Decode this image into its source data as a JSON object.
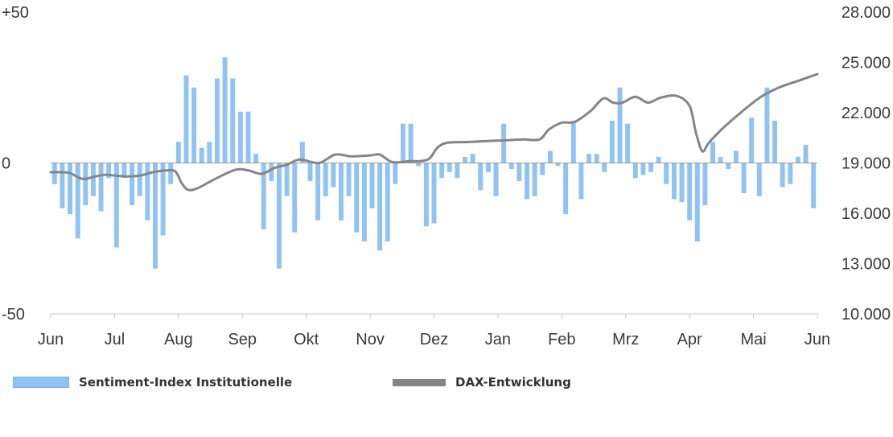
{
  "chart_data": {
    "type": "bar",
    "legend_position": "bottom",
    "grid": false,
    "colors": {
      "bar": "#90c3f4",
      "line": "#858585",
      "axis": "#c8c8c8"
    },
    "x_axis": {
      "ticks": [
        "Jun",
        "Jul",
        "Aug",
        "Sep",
        "Okt",
        "Nov",
        "Dez",
        "Jan",
        "Feb",
        "Mrz",
        "Apr",
        "Mai",
        "Jun"
      ]
    },
    "y_left": {
      "range": [
        -50,
        50
      ],
      "tick_labels": [
        "+50",
        "0",
        "-50"
      ]
    },
    "y_right": {
      "range": [
        10000,
        28000
      ],
      "ticks": [
        10000,
        13000,
        16000,
        19000,
        22000,
        25000,
        28000
      ],
      "tick_labels": [
        "10.000",
        "13.000",
        "16.000",
        "19.000",
        "22.000",
        "25.000",
        "28.000"
      ]
    },
    "series": [
      {
        "name": "Sentiment-Index Institutionelle",
        "type": "bar",
        "axis": "left",
        "values": [
          -7,
          -15,
          -17,
          -25,
          -14,
          -11,
          -16,
          -5,
          -28,
          -5,
          -14,
          -11,
          -19,
          -35,
          -24,
          -7,
          7,
          29,
          25,
          5,
          7,
          28,
          35,
          28,
          17,
          17,
          3,
          -22,
          -6,
          -35,
          -11,
          -23,
          7,
          -6,
          -19,
          -11,
          -8,
          -19,
          -11,
          -23,
          -26,
          -15,
          -29,
          -26,
          -7,
          13,
          13,
          -1,
          -21,
          -20,
          -5,
          -3,
          -5,
          2,
          3,
          -9,
          -3,
          -11,
          13,
          -2,
          -6,
          -12,
          -11,
          -4,
          4,
          -1,
          -17,
          14,
          -12,
          3,
          3,
          -3,
          14,
          25,
          13,
          -5,
          -4,
          -3,
          2,
          -7,
          -12,
          -13,
          -19,
          -26,
          -14,
          7,
          2,
          -2,
          4,
          -10,
          15,
          -11,
          25,
          14,
          -8,
          -7,
          2,
          6,
          -15
        ]
      },
      {
        "name": "DAX-Entwicklung",
        "type": "line",
        "axis": "right",
        "x_unit": "months since Jun",
        "points": [
          [
            0.0,
            18.45
          ],
          [
            0.15,
            18.45
          ],
          [
            0.3,
            18.4
          ],
          [
            0.5,
            18.05
          ],
          [
            0.7,
            18.2
          ],
          [
            0.85,
            18.3
          ],
          [
            1.0,
            18.25
          ],
          [
            1.2,
            18.2
          ],
          [
            1.4,
            18.25
          ],
          [
            1.6,
            18.45
          ],
          [
            1.8,
            18.55
          ],
          [
            1.95,
            18.5
          ],
          [
            2.05,
            17.8
          ],
          [
            2.15,
            17.4
          ],
          [
            2.3,
            17.5
          ],
          [
            2.6,
            18.1
          ],
          [
            2.9,
            18.6
          ],
          [
            3.1,
            18.55
          ],
          [
            3.3,
            18.35
          ],
          [
            3.5,
            18.7
          ],
          [
            3.7,
            18.9
          ],
          [
            3.9,
            19.2
          ],
          [
            4.2,
            19.0
          ],
          [
            4.45,
            19.5
          ],
          [
            4.7,
            19.4
          ],
          [
            5.0,
            19.45
          ],
          [
            5.15,
            19.5
          ],
          [
            5.35,
            19.05
          ],
          [
            5.6,
            19.1
          ],
          [
            5.9,
            19.2
          ],
          [
            6.05,
            19.9
          ],
          [
            6.2,
            20.2
          ],
          [
            6.5,
            20.25
          ],
          [
            6.8,
            20.3
          ],
          [
            7.1,
            20.35
          ],
          [
            7.4,
            20.4
          ],
          [
            7.65,
            20.4
          ],
          [
            7.8,
            21.0
          ],
          [
            8.0,
            21.4
          ],
          [
            8.2,
            21.45
          ],
          [
            8.45,
            22.1
          ],
          [
            8.65,
            22.85
          ],
          [
            8.8,
            22.6
          ],
          [
            8.95,
            22.6
          ],
          [
            9.15,
            22.95
          ],
          [
            9.35,
            22.6
          ],
          [
            9.55,
            22.9
          ],
          [
            9.8,
            23.0
          ],
          [
            10.0,
            22.4
          ],
          [
            10.1,
            20.8
          ],
          [
            10.2,
            19.7
          ],
          [
            10.3,
            20.2
          ],
          [
            10.5,
            21.0
          ],
          [
            10.8,
            22.0
          ],
          [
            11.1,
            22.9
          ],
          [
            11.4,
            23.5
          ],
          [
            11.7,
            23.9
          ],
          [
            12.0,
            24.3
          ],
          [
            12.3,
            24.45
          ],
          [
            12.5,
            24.35
          ]
        ]
      }
    ]
  }
}
